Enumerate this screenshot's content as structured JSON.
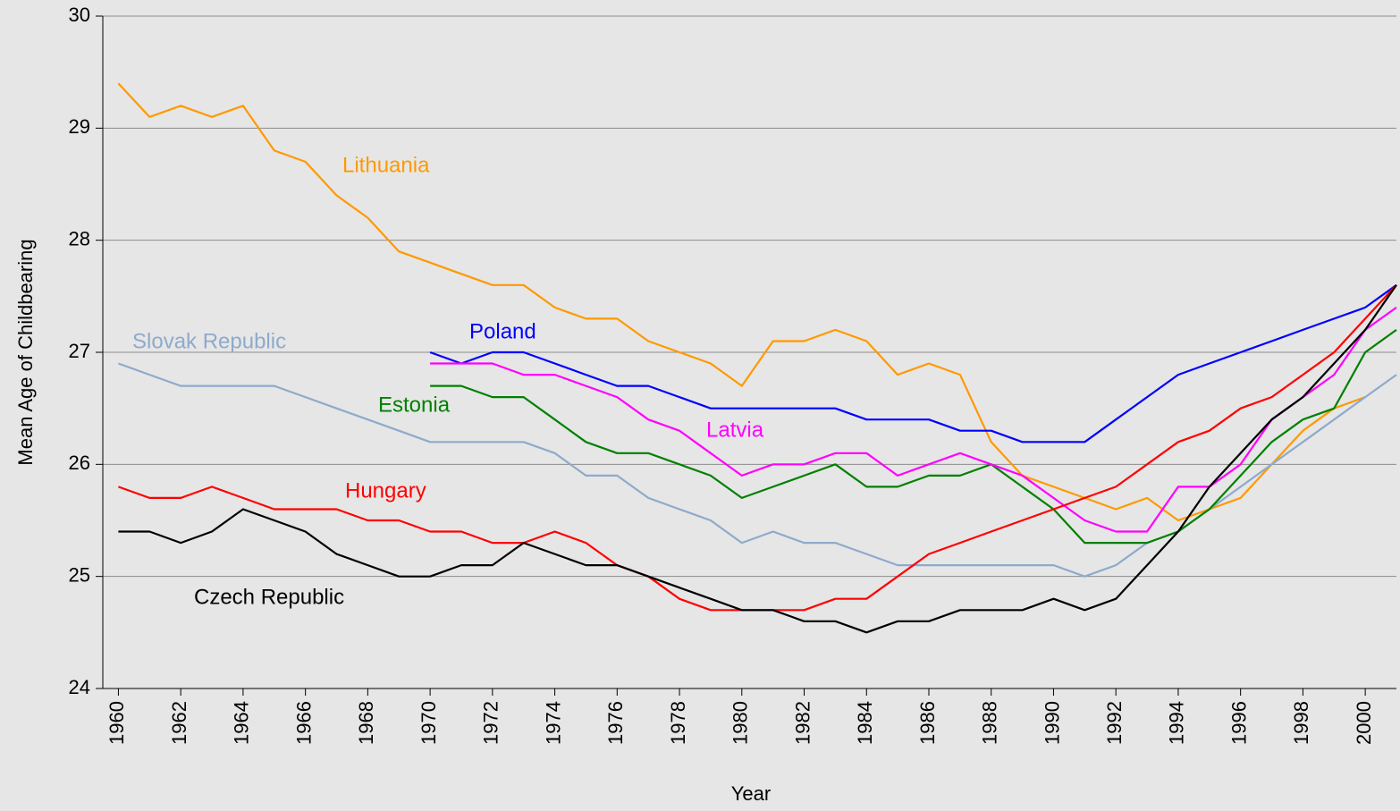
{
  "chart_data": {
    "type": "line",
    "x_label": "Year",
    "y_label": "Mean Age of Childbearing",
    "x": [
      1960,
      1961,
      1962,
      1963,
      1964,
      1965,
      1966,
      1967,
      1968,
      1969,
      1970,
      1971,
      1972,
      1973,
      1974,
      1975,
      1976,
      1977,
      1978,
      1979,
      1980,
      1981,
      1982,
      1983,
      1984,
      1985,
      1986,
      1987,
      1988,
      1989,
      1990,
      1991,
      1992,
      1993,
      1994,
      1995,
      1996,
      1997,
      1998,
      1999,
      2000,
      2001
    ],
    "xlim": [
      1959.5,
      2001
    ],
    "xticks": [
      1960,
      1962,
      1964,
      1966,
      1968,
      1970,
      1972,
      1974,
      1976,
      1978,
      1980,
      1982,
      1984,
      1986,
      1988,
      1990,
      1992,
      1994,
      1996,
      1998,
      2000
    ],
    "ylim": [
      24,
      30
    ],
    "yticks": [
      24,
      25,
      26,
      27,
      28,
      29,
      30
    ],
    "grid": true,
    "series": [
      {
        "name": "Lithuania",
        "color": "#ff9900",
        "values": [
          29.4,
          29.1,
          29.2,
          29.1,
          29.2,
          28.8,
          28.7,
          28.4,
          28.2,
          27.9,
          27.8,
          27.7,
          27.6,
          27.6,
          27.4,
          27.3,
          27.3,
          27.1,
          27.0,
          26.9,
          26.7,
          27.1,
          27.1,
          27.2,
          27.1,
          26.8,
          26.9,
          26.8,
          26.2,
          25.9,
          25.8,
          25.7,
          25.6,
          25.7,
          25.5,
          25.6,
          25.7,
          26.0,
          26.3,
          26.5,
          26.6,
          null
        ]
      },
      {
        "name": "Slovak Republic",
        "color": "#8eaacb",
        "values": [
          26.9,
          26.8,
          26.7,
          26.7,
          26.7,
          26.7,
          26.6,
          26.5,
          26.4,
          26.3,
          26.2,
          26.2,
          26.2,
          26.2,
          26.1,
          25.9,
          25.9,
          25.7,
          25.6,
          25.5,
          25.3,
          25.4,
          25.3,
          25.3,
          25.2,
          25.1,
          25.1,
          25.1,
          25.1,
          25.1,
          25.1,
          25.0,
          25.1,
          25.3,
          25.4,
          25.6,
          25.8,
          26.0,
          26.2,
          26.4,
          26.6,
          26.8
        ]
      },
      {
        "name": "Poland",
        "color": "#0000ff",
        "values": [
          null,
          null,
          null,
          null,
          null,
          null,
          null,
          null,
          null,
          null,
          27.0,
          26.9,
          27.0,
          27.0,
          26.9,
          26.8,
          26.7,
          26.7,
          26.6,
          26.5,
          26.5,
          26.5,
          26.5,
          26.5,
          26.4,
          26.4,
          26.4,
          26.3,
          26.3,
          26.2,
          26.2,
          26.2,
          26.4,
          26.6,
          26.8,
          26.9,
          27.0,
          27.1,
          27.2,
          27.3,
          27.4,
          27.6
        ]
      },
      {
        "name": "Estonia",
        "color": "#008000",
        "values": [
          null,
          null,
          null,
          null,
          null,
          null,
          null,
          null,
          null,
          null,
          26.7,
          26.7,
          26.6,
          26.6,
          26.4,
          26.2,
          26.1,
          26.1,
          26.0,
          25.9,
          25.7,
          25.8,
          25.9,
          26.0,
          25.8,
          25.8,
          25.9,
          25.9,
          26.0,
          25.8,
          25.6,
          25.3,
          25.3,
          25.3,
          25.4,
          25.6,
          25.9,
          26.2,
          26.4,
          26.5,
          27.0,
          27.2
        ]
      },
      {
        "name": "Latvia",
        "color": "#ff00ff",
        "values": [
          null,
          null,
          null,
          null,
          null,
          null,
          null,
          null,
          null,
          null,
          26.9,
          26.9,
          26.9,
          26.8,
          26.8,
          26.7,
          26.6,
          26.4,
          26.3,
          26.1,
          25.9,
          26.0,
          26.0,
          26.1,
          26.1,
          25.9,
          26.0,
          26.1,
          26.0,
          25.9,
          25.7,
          25.5,
          25.4,
          25.4,
          25.8,
          25.8,
          26.0,
          26.4,
          26.6,
          26.8,
          27.2,
          27.4
        ]
      },
      {
        "name": "Hungary",
        "color": "#ff0000",
        "values": [
          25.8,
          25.7,
          25.7,
          25.8,
          25.7,
          25.6,
          25.6,
          25.6,
          25.5,
          25.5,
          25.4,
          25.4,
          25.3,
          25.3,
          25.4,
          25.3,
          25.1,
          25.0,
          24.8,
          24.7,
          24.7,
          24.7,
          24.7,
          24.8,
          24.8,
          25.0,
          25.2,
          25.3,
          25.4,
          25.5,
          25.6,
          25.7,
          25.8,
          26.0,
          26.2,
          26.3,
          26.5,
          26.6,
          26.8,
          27.0,
          27.3,
          27.6
        ]
      },
      {
        "name": "Czech Republic",
        "color": "#000000",
        "values": [
          25.4,
          25.4,
          25.3,
          25.4,
          25.6,
          25.5,
          25.4,
          25.2,
          25.1,
          25.0,
          25.0,
          25.1,
          25.1,
          25.3,
          25.2,
          25.1,
          25.1,
          25.0,
          24.9,
          24.8,
          24.7,
          24.7,
          24.6,
          24.6,
          24.5,
          24.6,
          24.6,
          24.7,
          24.7,
          24.7,
          24.8,
          24.7,
          24.8,
          25.1,
          25.4,
          25.8,
          26.1,
          26.4,
          26.6,
          26.9,
          27.2,
          27.6
        ]
      }
    ]
  }
}
